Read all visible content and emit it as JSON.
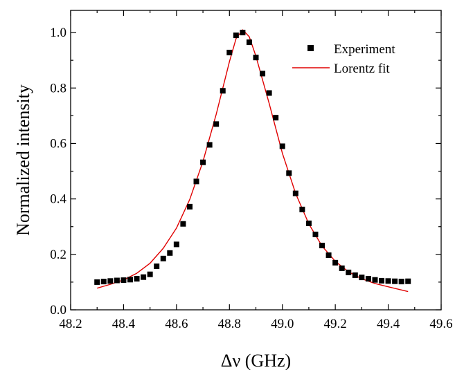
{
  "chart_data": {
    "type": "scatter",
    "xlabel": "Δν (GHz)",
    "ylabel": "Normalized intensity",
    "xlim": [
      48.2,
      49.6
    ],
    "ylim": [
      0.0,
      1.08
    ],
    "x_ticks": [
      "48.2",
      "48.4",
      "48.6",
      "48.8",
      "49.0",
      "49.2",
      "49.4",
      "49.6"
    ],
    "y_ticks": [
      "0.0",
      "0.2",
      "0.4",
      "0.6",
      "0.8",
      "1.0"
    ],
    "legend_position": "top-right",
    "grid": false,
    "series": [
      {
        "name": "Experiment",
        "kind": "scatter",
        "marker": "square",
        "color": "#000000",
        "x": [
          48.3,
          48.325,
          48.35,
          48.375,
          48.4,
          48.425,
          48.45,
          48.475,
          48.5,
          48.525,
          48.55,
          48.575,
          48.6,
          48.625,
          48.65,
          48.675,
          48.7,
          48.725,
          48.75,
          48.775,
          48.8,
          48.825,
          48.85,
          48.875,
          48.9,
          48.925,
          48.95,
          48.975,
          49.0,
          49.025,
          49.05,
          49.075,
          49.1,
          49.125,
          49.15,
          49.175,
          49.2,
          49.225,
          49.25,
          49.275,
          49.3,
          49.325,
          49.35,
          49.375,
          49.4,
          49.425,
          49.45,
          49.475
        ],
        "y": [
          0.1,
          0.102,
          0.104,
          0.106,
          0.107,
          0.109,
          0.112,
          0.118,
          0.128,
          0.157,
          0.185,
          0.205,
          0.236,
          0.31,
          0.372,
          0.463,
          0.532,
          0.595,
          0.67,
          0.79,
          0.928,
          0.99,
          1.0,
          0.965,
          0.91,
          0.852,
          0.782,
          0.693,
          0.59,
          0.493,
          0.42,
          0.362,
          0.312,
          0.272,
          0.232,
          0.197,
          0.17,
          0.15,
          0.135,
          0.125,
          0.117,
          0.112,
          0.108,
          0.105,
          0.104,
          0.103,
          0.102,
          0.103
        ]
      },
      {
        "name": "Lorentz fit",
        "kind": "line",
        "color": "#e00000",
        "x": [
          48.3,
          48.35,
          48.4,
          48.45,
          48.5,
          48.55,
          48.6,
          48.65,
          48.7,
          48.75,
          48.8,
          48.825,
          48.85,
          48.875,
          48.9,
          48.95,
          49.0,
          49.05,
          49.1,
          49.15,
          49.2,
          49.25,
          49.3,
          49.35,
          49.4,
          49.475
        ],
        "y": [
          0.078,
          0.092,
          0.108,
          0.132,
          0.168,
          0.222,
          0.295,
          0.398,
          0.535,
          0.705,
          0.895,
          0.978,
          1.01,
          0.985,
          0.915,
          0.745,
          0.565,
          0.42,
          0.31,
          0.23,
          0.175,
          0.137,
          0.112,
          0.095,
          0.083,
          0.066
        ]
      }
    ]
  }
}
